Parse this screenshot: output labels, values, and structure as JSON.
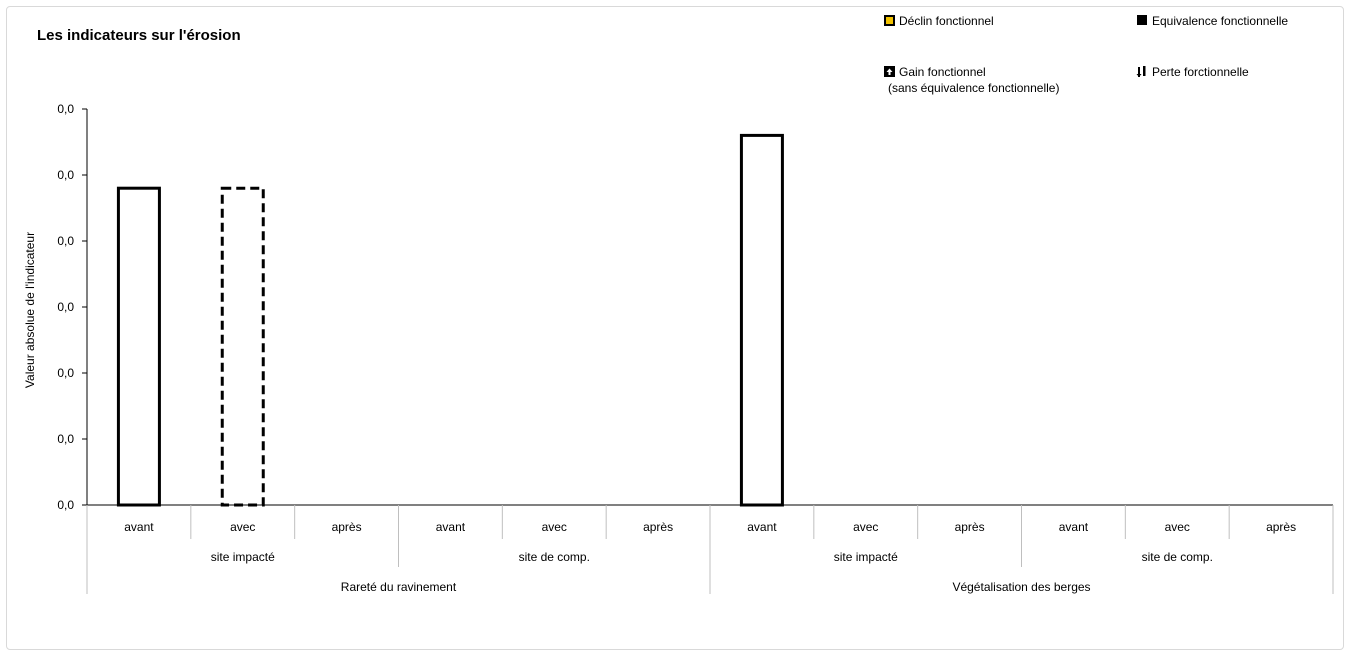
{
  "chart_data": {
    "type": "bar",
    "title": "Les indicateurs sur l'érosion",
    "ylabel": "Valeur absolue de l'indicateur",
    "y_tick_labels": [
      "0,0",
      "0,0",
      "0,0",
      "0,0",
      "0,0",
      "0,0",
      "0,0"
    ],
    "ylim": [
      0,
      6
    ],
    "categories": [
      "avant",
      "avec",
      "après",
      "avant",
      "avec",
      "après",
      "avant",
      "avec",
      "après",
      "avant",
      "avec",
      "après"
    ],
    "sites": [
      "site impacté",
      "site de comp.",
      "site impacté",
      "site de comp."
    ],
    "groups": [
      "Rareté du ravinement",
      "Végétalisation des berges"
    ],
    "values": [
      4.8,
      4.8,
      null,
      null,
      null,
      null,
      5.6,
      null,
      null,
      null,
      null,
      null
    ],
    "bar_styles": [
      "solid",
      "dashed",
      "none",
      "none",
      "none",
      "none",
      "solid",
      "none",
      "none",
      "none",
      "none",
      "none"
    ],
    "legend": [
      {
        "label": "Déclin fonctionnel",
        "marker": "yellow-square",
        "color": "#f2c200"
      },
      {
        "label": "Equivalence fonctionnelle",
        "marker": "black-square",
        "color": "#000000"
      },
      {
        "label": "Gain fonctionnel",
        "sublabel": "(sans équivalence fonctionnelle)",
        "marker": "up-arrow-square",
        "color": "#000000"
      },
      {
        "label": "Perte forctionnelle",
        "marker": "down-arrow-pair",
        "color": "#000000"
      }
    ],
    "legend_position": "top-right",
    "grid": false
  }
}
